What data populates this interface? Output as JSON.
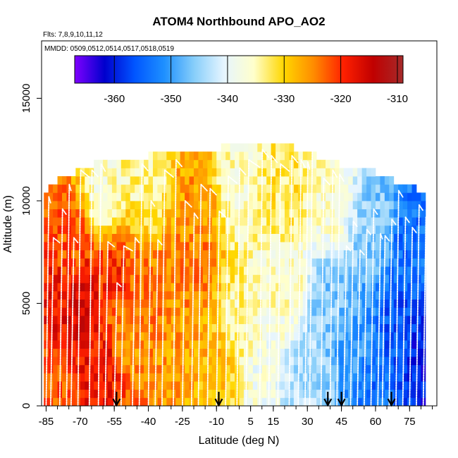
{
  "chart_data": {
    "type": "heatmap",
    "title": "ATOM4 Northbound APO_AO2",
    "flights_note": "Flts: 7,8,9,10,11,12",
    "dates_note": "MMDD: 0509,0512,0514,0517,0518,0519",
    "xlabel": "Latitude (deg N)",
    "ylabel": "Altitude (m)",
    "xlim": [
      -87,
      87
    ],
    "ylim": [
      0,
      17800
    ],
    "x_ticks": [
      -85,
      -70,
      -55,
      -40,
      -25,
      -10,
      5,
      15,
      30,
      45,
      60,
      75
    ],
    "y_ticks": [
      0,
      5000,
      10000,
      15000
    ],
    "colorbar": {
      "range": [
        -367,
        -309
      ],
      "ticks": [
        -360,
        -350,
        -340,
        -330,
        -320,
        -310
      ],
      "colors": [
        "#7f00ff",
        "#0000cd",
        "#0055ff",
        "#1e90ff",
        "#87cefa",
        "#e6f5ff",
        "#ffffcc",
        "#ffd700",
        "#ff8c00",
        "#ff2000",
        "#c00000",
        "#a52a2a"
      ]
    },
    "field": {
      "description": "APO anomaly values by latitude and altitude bin",
      "lat_bin_width": 2,
      "alt_bin_height": 400,
      "coverage": [
        [
          -86,
          0,
          10200
        ],
        [
          -84,
          0,
          10600
        ],
        [
          -76,
          0,
          11000
        ],
        [
          -62,
          0,
          11700
        ],
        [
          -40,
          0,
          12000
        ],
        [
          -20,
          0,
          12100
        ],
        [
          10,
          0,
          12800
        ],
        [
          30,
          0,
          12200
        ],
        [
          45,
          0,
          11600
        ],
        [
          60,
          0,
          11200
        ],
        [
          70,
          0,
          10700
        ],
        [
          82,
          0,
          10200
        ]
      ],
      "anchors": [
        {
          "lat": -85,
          "alt": 1000,
          "value": -322
        },
        {
          "lat": -80,
          "alt": 5000,
          "value": -318
        },
        {
          "lat": -75,
          "alt": 8000,
          "value": -322
        },
        {
          "lat": -70,
          "alt": 5000,
          "value": -316
        },
        {
          "lat": -60,
          "alt": 2000,
          "value": -318
        },
        {
          "lat": -55,
          "alt": 6000,
          "value": -320
        },
        {
          "lat": -50,
          "alt": 3500,
          "value": -326
        },
        {
          "lat": -40,
          "alt": 5000,
          "value": -324
        },
        {
          "lat": -30,
          "alt": 3000,
          "value": -326
        },
        {
          "lat": -20,
          "alt": 7000,
          "value": -324
        },
        {
          "lat": -10,
          "alt": 2000,
          "value": -328
        },
        {
          "lat": 0,
          "alt": 4000,
          "value": -334
        },
        {
          "lat": 10,
          "alt": 2000,
          "value": -338
        },
        {
          "lat": 20,
          "alt": 6000,
          "value": -336
        },
        {
          "lat": 30,
          "alt": 1000,
          "value": -344
        },
        {
          "lat": 40,
          "alt": 5000,
          "value": -346
        },
        {
          "lat": 50,
          "alt": 3000,
          "value": -350
        },
        {
          "lat": 60,
          "alt": 1000,
          "value": -354
        },
        {
          "lat": 70,
          "alt": 4000,
          "value": -356
        },
        {
          "lat": 80,
          "alt": 2000,
          "value": -360
        },
        {
          "lat": -60,
          "alt": 10500,
          "value": -336
        },
        {
          "lat": -40,
          "alt": 11000,
          "value": -334
        },
        {
          "lat": -20,
          "alt": 10000,
          "value": -326
        },
        {
          "lat": 0,
          "alt": 11000,
          "value": -336
        },
        {
          "lat": 20,
          "alt": 10500,
          "value": -332
        },
        {
          "lat": 40,
          "alt": 10000,
          "value": -336
        },
        {
          "lat": 60,
          "alt": 9000,
          "value": -346
        },
        {
          "lat": 75,
          "alt": 8000,
          "value": -354
        }
      ]
    },
    "flight_tracks": {
      "description": "White dotted vertical profiles of aircraft",
      "profile_latitudes": [
        -85,
        -83,
        -79,
        -76,
        -74,
        -71,
        -66,
        -62,
        -59,
        -55,
        -52,
        -47,
        -44,
        -40,
        -37,
        -34,
        -29,
        -25,
        -21,
        -18,
        -14,
        -10,
        -6,
        -1,
        3,
        9,
        13,
        17,
        22,
        26,
        29,
        31,
        36,
        40,
        43,
        46,
        49,
        52,
        55,
        58,
        61,
        63,
        66,
        69,
        72,
        75,
        78,
        81
      ],
      "top_altitudes_m": [
        10200,
        8200,
        9600,
        10800,
        8200,
        11500,
        11500,
        11800,
        8000,
        6000,
        7800,
        8200,
        11800,
        10000,
        8100,
        11500,
        12000,
        10000,
        9400,
        10800,
        10600,
        9500,
        11200,
        11600,
        12000,
        12500,
        12200,
        11800,
        12200,
        12000,
        11900,
        12700,
        11100,
        11500,
        11300,
        7800,
        9000,
        7600,
        8600,
        9600,
        8400,
        8300,
        9100,
        10500,
        9200,
        8700,
        9800,
        9200
      ]
    },
    "markers": {
      "type": "arrow-down",
      "latitudes": [
        -54,
        -9,
        39,
        45,
        67
      ]
    }
  }
}
